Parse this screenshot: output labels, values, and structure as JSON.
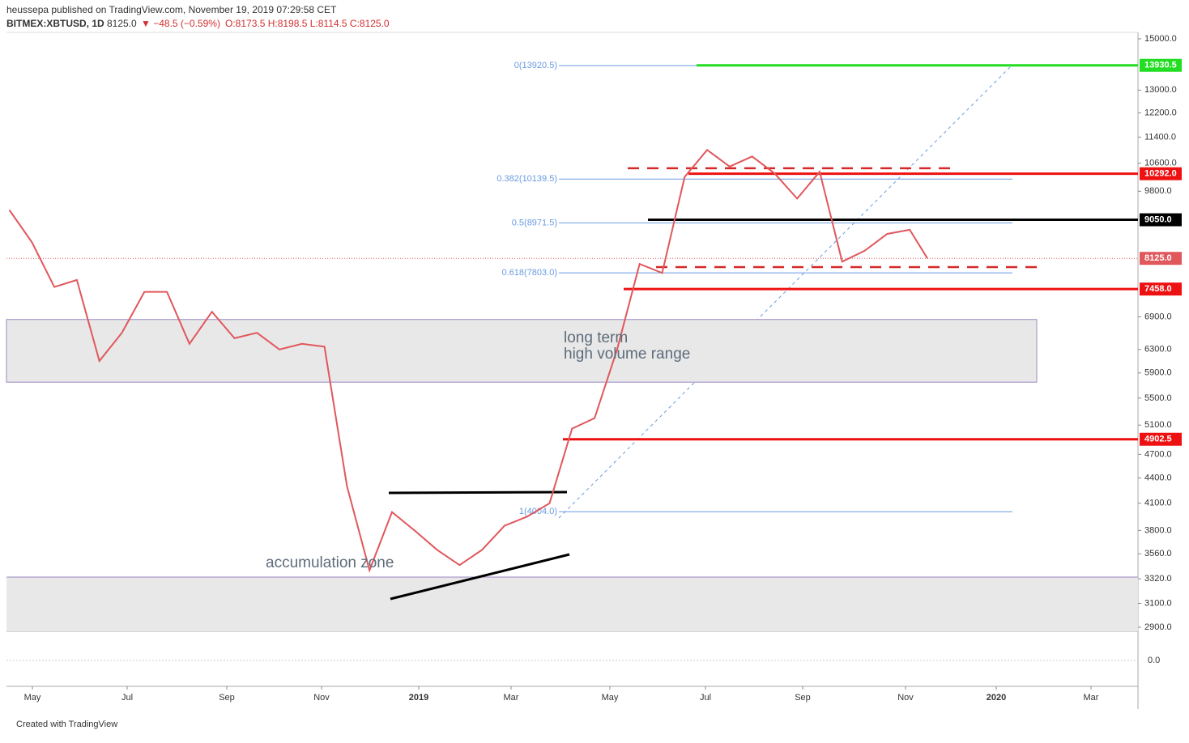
{
  "header": {
    "publisher": "heussepa published on TradingView.com, November 19, 2019 07:29:58 CET",
    "symbol": "BITMEX:XBTUSD, 1D",
    "last": "8125.0",
    "change": "▼ −48.5 (−0.59%)",
    "ohlc": "O:8173.5 H:8198.5 L:8114.5 C:8125.0"
  },
  "footer": "Created with TradingView",
  "chart_data": {
    "type": "line",
    "log_scale": true,
    "color": "#e0575c",
    "values": [
      9300,
      8500,
      7500,
      7650,
      6100,
      6600,
      7400,
      7400,
      6400,
      7000,
      6500,
      6600,
      6300,
      6400,
      6350,
      4300,
      3400,
      4000,
      3800,
      3600,
      3450,
      3600,
      3850,
      3950,
      4100,
      5050,
      5200,
      6300,
      8000,
      7800,
      10200,
      11000,
      10500,
      10800,
      10300,
      9600,
      10350,
      8050,
      8300,
      8700,
      8800,
      8125
    ],
    "ylim": [
      2900,
      15000
    ],
    "yticks": [
      {
        "value": 15000,
        "label": "15000.0"
      },
      {
        "value": 13000,
        "label": "13000.0"
      },
      {
        "value": 12200,
        "label": "12200.0"
      },
      {
        "value": 11400,
        "label": "11400.0"
      },
      {
        "value": 10600,
        "label": "10600.0"
      },
      {
        "value": 9800,
        "label": "9800.0"
      },
      {
        "value": 6900,
        "label": "6900.0"
      },
      {
        "value": 6300,
        "label": "6300.0"
      },
      {
        "value": 5900,
        "label": "5900.0"
      },
      {
        "value": 5500,
        "label": "5500.0"
      },
      {
        "value": 5100,
        "label": "5100.0"
      },
      {
        "value": 4700,
        "label": "4700.0"
      },
      {
        "value": 4400,
        "label": "4400.0"
      },
      {
        "value": 4100,
        "label": "4100.0"
      },
      {
        "value": 3800,
        "label": "3800.0"
      },
      {
        "value": 3560,
        "label": "3560.0"
      },
      {
        "value": 3320,
        "label": "3320.0"
      },
      {
        "value": 3100,
        "label": "3100.0"
      },
      {
        "value": 2900,
        "label": "2900.0"
      }
    ],
    "x_labels": [
      "May",
      "Jul",
      "Sep",
      "Nov",
      "2019",
      "Mar",
      "May",
      "Jul",
      "Sep",
      "Nov",
      "2020",
      "Mar"
    ],
    "levels": [
      {
        "value": 13930.5,
        "label": "13930.5",
        "color": "#22dd22"
      },
      {
        "value": 10292,
        "label": "10292.0",
        "color": "#ee1111"
      },
      {
        "value": 9050,
        "label": "9050.0",
        "color": "#000000"
      },
      {
        "value": 8125,
        "label": "8125.0",
        "color": "#e0575c"
      },
      {
        "value": 7458,
        "label": "7458.0",
        "color": "#ee1111"
      },
      {
        "value": 4902.5,
        "label": "4902.5",
        "color": "#ee1111"
      }
    ],
    "dashed_levels": [
      10450,
      7930
    ],
    "fib_levels": [
      {
        "value": 13920.5,
        "label": "0(13920.5)"
      },
      {
        "value": 10139.5,
        "label": "0.382(10139.5)"
      },
      {
        "value": 8971.5,
        "label": "0.5(8971.5)"
      },
      {
        "value": 7803,
        "label": "0.618(7803.0)"
      },
      {
        "value": 4004,
        "label": "1(4004.0)"
      }
    ],
    "zone": [
      5750,
      6850
    ],
    "annotations": [
      "long term",
      "high volume range",
      "accumulation zone"
    ],
    "oscillator_tick": {
      "value": 0,
      "label": "0.0"
    }
  }
}
